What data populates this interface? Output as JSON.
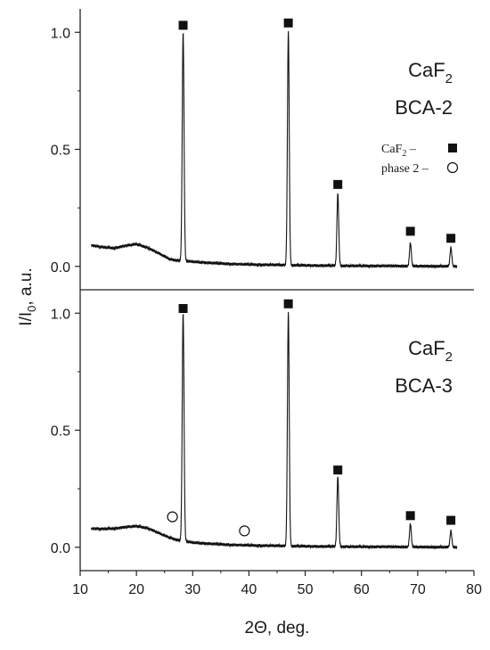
{
  "chart_data": {
    "type": "line",
    "x_axis": {
      "label": "2Θ, deg.",
      "range": [
        10,
        80
      ],
      "ticks": [
        "10",
        "20",
        "30",
        "40",
        "50",
        "60",
        "70",
        "80"
      ]
    },
    "y_axis": {
      "label_main": "I/I",
      "label_sub": "0",
      "label_rest": ", a.u."
    },
    "legend": {
      "placement": "upper-right of top panel",
      "entries": [
        {
          "label_main": "CaF",
          "label_sub": "2",
          "label_rest": " –",
          "marker": "filled-square"
        },
        {
          "label_main": "phase 2 –",
          "label_sub": "",
          "label_rest": "",
          "marker": "open-circle"
        }
      ]
    },
    "panels": [
      {
        "name": "top",
        "label_line1_main": "CaF",
        "label_line1_sub": "2",
        "label_line2": "BCA-2",
        "y_range": [
          -0.1,
          1.1
        ],
        "y_ticks": [
          "0.0",
          "0.5",
          "1.0"
        ],
        "peaks": [
          {
            "x": 28.3,
            "y": 1.0
          },
          {
            "x": 47.0,
            "y": 1.0
          },
          {
            "x": 55.8,
            "y": 0.31
          },
          {
            "x": 68.7,
            "y": 0.1
          },
          {
            "x": 75.9,
            "y": 0.08
          }
        ],
        "markers": [
          {
            "type": "filled-square",
            "x": 28.3,
            "y": 1.03
          },
          {
            "type": "filled-square",
            "x": 47.0,
            "y": 1.04
          },
          {
            "type": "filled-square",
            "x": 55.8,
            "y": 0.35
          },
          {
            "type": "filled-square",
            "x": 68.7,
            "y": 0.15
          },
          {
            "type": "filled-square",
            "x": 75.9,
            "y": 0.12
          }
        ],
        "baseline": [
          [
            12,
            0.09
          ],
          [
            14,
            0.082
          ],
          [
            16,
            0.078
          ],
          [
            18,
            0.088
          ],
          [
            20,
            0.095
          ],
          [
            22,
            0.08
          ],
          [
            24,
            0.055
          ],
          [
            26,
            0.03
          ],
          [
            27.5,
            0.025
          ],
          [
            30,
            0.02
          ],
          [
            35,
            0.012
          ],
          [
            40,
            0.008
          ],
          [
            45,
            0.006
          ],
          [
            50,
            0.004
          ],
          [
            55,
            0.003
          ],
          [
            60,
            0.002
          ],
          [
            65,
            0.002
          ],
          [
            70,
            0.001
          ],
          [
            77,
            0.0
          ]
        ]
      },
      {
        "name": "bottom",
        "label_line1_main": "CaF",
        "label_line1_sub": "2",
        "label_line2": "BCA-3",
        "y_range": [
          -0.1,
          1.1
        ],
        "y_ticks": [
          "0.0",
          "0.5",
          "1.0"
        ],
        "peaks": [
          {
            "x": 28.3,
            "y": 1.0
          },
          {
            "x": 47.0,
            "y": 1.0
          },
          {
            "x": 55.8,
            "y": 0.3
          },
          {
            "x": 68.7,
            "y": 0.1
          },
          {
            "x": 75.9,
            "y": 0.07
          }
        ],
        "markers": [
          {
            "type": "filled-square",
            "x": 28.3,
            "y": 1.02
          },
          {
            "type": "filled-square",
            "x": 47.0,
            "y": 1.04
          },
          {
            "type": "filled-square",
            "x": 55.8,
            "y": 0.33
          },
          {
            "type": "filled-square",
            "x": 68.7,
            "y": 0.135
          },
          {
            "type": "filled-square",
            "x": 75.9,
            "y": 0.115
          },
          {
            "type": "open-circle",
            "x": 26.4,
            "y": 0.13
          },
          {
            "type": "open-circle",
            "x": 39.2,
            "y": 0.07
          }
        ],
        "baseline": [
          [
            12,
            0.08
          ],
          [
            14,
            0.078
          ],
          [
            16,
            0.08
          ],
          [
            18,
            0.086
          ],
          [
            20,
            0.09
          ],
          [
            22,
            0.082
          ],
          [
            24,
            0.06
          ],
          [
            26,
            0.04
          ],
          [
            27.5,
            0.03
          ],
          [
            30,
            0.02
          ],
          [
            35,
            0.012
          ],
          [
            40,
            0.008
          ],
          [
            45,
            0.006
          ],
          [
            50,
            0.004
          ],
          [
            55,
            0.003
          ],
          [
            60,
            0.002
          ],
          [
            65,
            0.002
          ],
          [
            70,
            0.001
          ],
          [
            77,
            0.0
          ]
        ]
      }
    ]
  }
}
